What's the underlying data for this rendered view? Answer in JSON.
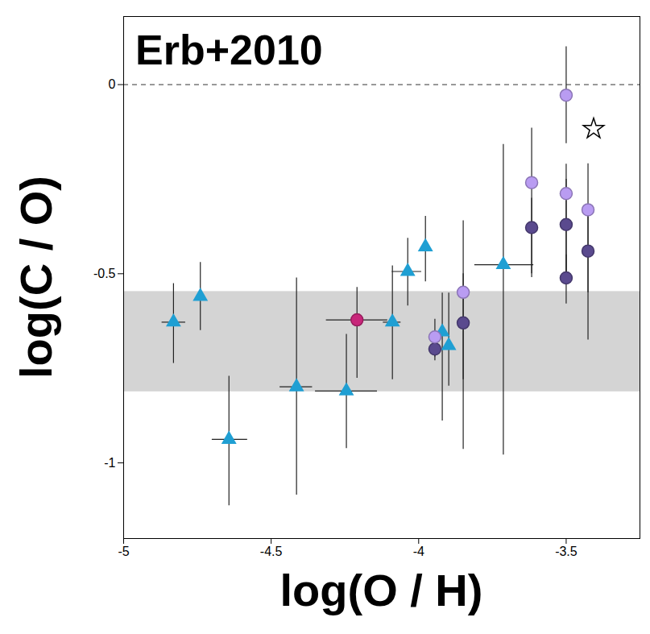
{
  "chart_data": {
    "type": "scatter",
    "title": "Erb+2010",
    "x_label": "log(O / H)",
    "y_label": "log(C / O)",
    "xlim": [
      -5,
      -3.25
    ],
    "ylim": [
      -1.2,
      0.18
    ],
    "xticks": [
      -5,
      -4.5,
      -4,
      -3.5
    ],
    "yticks": [
      0,
      -0.5,
      -1
    ],
    "band": [
      -0.812,
      -0.547
    ],
    "hline": 0,
    "series": [
      {
        "color": "#1f9fd3",
        "marker": "triangle",
        "x": [
          -4.831,
          -4.74,
          -4.643,
          -4.414,
          -4.245,
          -4.089,
          -4.037,
          -3.977,
          -3.92,
          -3.898,
          -3.713
        ],
        "values": [
          -0.628,
          -0.56,
          -0.938,
          -0.799,
          -0.81,
          -0.628,
          -0.494,
          -0.429,
          -0.654,
          -0.69,
          -0.476
        ],
        "x_low": [
          -4.87,
          null,
          -4.7,
          -4.47,
          -4.35,
          -4.12,
          -4.09,
          null,
          null,
          null,
          -3.81
        ],
        "x_high": [
          -4.79,
          null,
          -4.58,
          -4.36,
          -4.14,
          -4.06,
          -3.99,
          null,
          null,
          null,
          -3.61
        ],
        "y_low": [
          -0.737,
          -0.65,
          -1.113,
          -1.085,
          -0.962,
          -0.78,
          -0.585,
          -0.521,
          -0.889,
          -0.797,
          -0.979
        ],
        "y_high": [
          -0.526,
          -0.47,
          -0.771,
          -0.511,
          -0.66,
          -0.479,
          -0.406,
          -0.348,
          -0.551,
          -0.551,
          -0.158
        ]
      },
      {
        "color": "#c8267a",
        "marker": "circle",
        "x": [
          -4.209
        ],
        "values": [
          -0.622
        ],
        "x_low": [
          -4.313
        ],
        "x_high": [
          -4.105
        ],
        "y_low": [
          -0.776
        ],
        "y_high": [
          -0.536
        ]
      },
      {
        "color": "#5a4a8e",
        "marker": "circle",
        "x": [
          -3.945,
          -3.849,
          -3.617,
          -3.5,
          -3.5,
          -3.426
        ],
        "values": [
          -0.699,
          -0.63,
          -0.378,
          -0.37,
          -0.511,
          -0.44
        ],
        "x_low": [
          -3.96,
          -3.865,
          -3.632,
          -3.515,
          -3.515,
          -3.441
        ],
        "x_high": [
          -3.93,
          -3.834,
          -3.602,
          -3.485,
          -3.485,
          -3.411
        ],
        "y_low": [
          -0.73,
          -0.964,
          -0.5,
          -0.5,
          -0.58,
          -0.55
        ],
        "y_high": [
          -0.67,
          -0.5,
          -0.3,
          -0.25,
          -0.45,
          -0.33
        ]
      },
      {
        "color": "#b99cf2",
        "marker": "circle",
        "x": [
          -3.945,
          -3.849,
          -3.617,
          -3.5,
          -3.5,
          -3.426
        ],
        "values": [
          -0.667,
          -0.549,
          -0.259,
          -0.028,
          -0.288,
          -0.331
        ],
        "x_low": [
          -3.96,
          -3.865,
          -3.632,
          -3.515,
          -3.515,
          -3.441
        ],
        "x_high": [
          -3.93,
          -3.834,
          -3.602,
          -3.485,
          -3.485,
          -3.411
        ],
        "y_low": [
          -0.72,
          -0.78,
          -0.51,
          -0.156,
          -0.5,
          -0.675
        ],
        "y_high": [
          -0.62,
          -0.36,
          -0.115,
          0.1,
          -0.21,
          -0.209
        ]
      },
      {
        "color": "#000000",
        "marker": "star",
        "x": [
          -3.407
        ],
        "values": [
          -0.117
        ],
        "x_low": [
          null
        ],
        "x_high": [
          null
        ],
        "y_low": [
          null
        ],
        "y_high": [
          null
        ]
      }
    ]
  }
}
